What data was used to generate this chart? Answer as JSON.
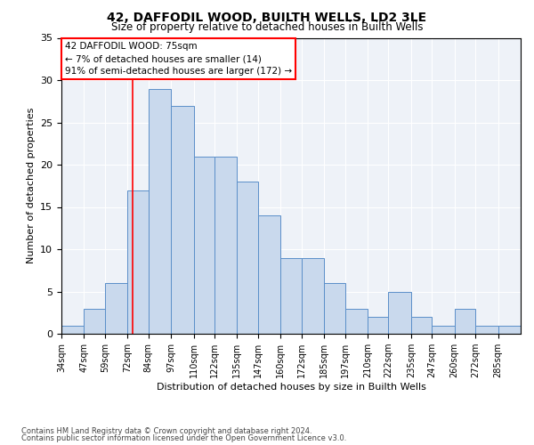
{
  "title1": "42, DAFFODIL WOOD, BUILTH WELLS, LD2 3LE",
  "title2": "Size of property relative to detached houses in Builth Wells",
  "xlabel": "Distribution of detached houses by size in Builth Wells",
  "ylabel": "Number of detached properties",
  "bin_labels": [
    "34sqm",
    "47sqm",
    "59sqm",
    "72sqm",
    "84sqm",
    "97sqm",
    "110sqm",
    "122sqm",
    "135sqm",
    "147sqm",
    "160sqm",
    "172sqm",
    "185sqm",
    "197sqm",
    "210sqm",
    "222sqm",
    "235sqm",
    "247sqm",
    "260sqm",
    "272sqm",
    "285sqm"
  ],
  "bar_heights": [
    1,
    3,
    6,
    17,
    29,
    27,
    21,
    21,
    18,
    14,
    9,
    9,
    6,
    3,
    2,
    5,
    2,
    1,
    3,
    1,
    1
  ],
  "bar_color": "#c9d9ed",
  "bar_edge_color": "#5b8fc9",
  "red_line_x": 75,
  "bin_edges": [
    34,
    47,
    59,
    72,
    84,
    97,
    110,
    122,
    135,
    147,
    160,
    172,
    185,
    197,
    210,
    222,
    235,
    247,
    260,
    272,
    285,
    298
  ],
  "annotation_title": "42 DAFFODIL WOOD: 75sqm",
  "annotation_line1": "← 7% of detached houses are smaller (14)",
  "annotation_line2": "91% of semi-detached houses are larger (172) →",
  "footnote1": "Contains HM Land Registry data © Crown copyright and database right 2024.",
  "footnote2": "Contains public sector information licensed under the Open Government Licence v3.0.",
  "ylim": [
    0,
    35
  ],
  "yticks": [
    0,
    5,
    10,
    15,
    20,
    25,
    30,
    35
  ],
  "background_color": "#eef2f8"
}
